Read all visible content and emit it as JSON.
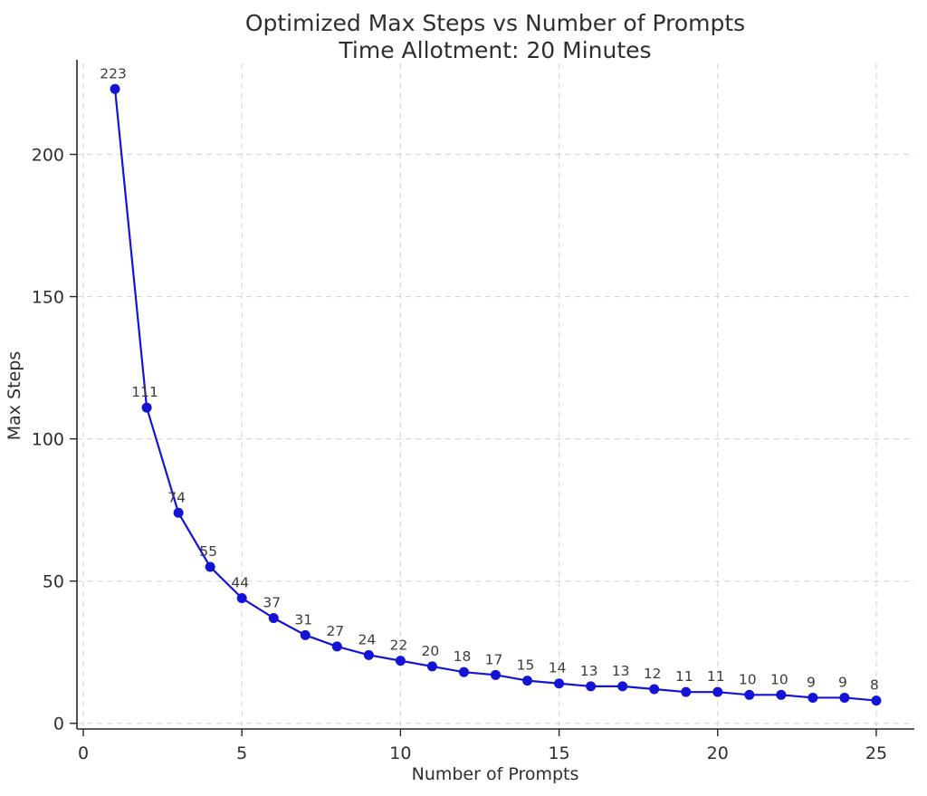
{
  "chart_data": {
    "type": "line",
    "title": "Optimized Max Steps vs Number of Prompts",
    "subtitle": "Time Allotment: 20 Minutes",
    "xlabel": "Number of Prompts",
    "ylabel": "Max Steps",
    "x": [
      1,
      2,
      3,
      4,
      5,
      6,
      7,
      8,
      9,
      10,
      11,
      12,
      13,
      14,
      15,
      16,
      17,
      18,
      19,
      20,
      21,
      22,
      23,
      24,
      25
    ],
    "values": [
      223,
      111,
      74,
      55,
      44,
      37,
      31,
      27,
      24,
      22,
      20,
      18,
      17,
      15,
      14,
      13,
      13,
      12,
      11,
      11,
      10,
      10,
      9,
      9,
      8
    ],
    "xticks": [
      0,
      5,
      10,
      15,
      20,
      25
    ],
    "yticks": [
      0,
      50,
      100,
      150,
      200
    ],
    "xlim": [
      -0.2,
      26.2
    ],
    "ylim": [
      -2,
      232
    ],
    "grid": true,
    "legend": "none",
    "line_color": "#1414d6",
    "marker": "circle",
    "marker_color": "#1414d6",
    "text_color": "#2e2e2e",
    "grid_color": "#d2d2d2",
    "background_color": "#ffffff"
  }
}
